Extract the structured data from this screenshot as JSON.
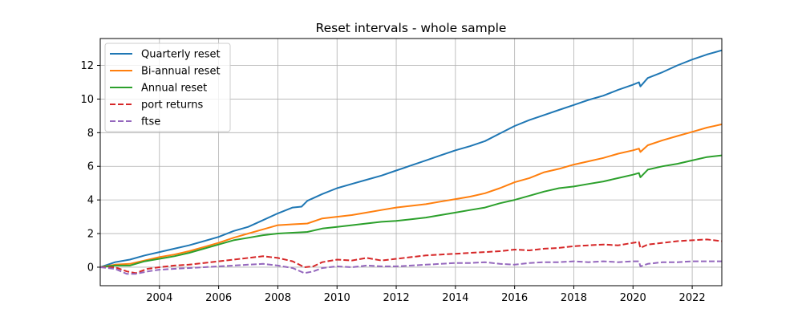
{
  "chart_data": {
    "type": "line",
    "title": "Reset intervals - whole sample",
    "xlabel": "",
    "ylabel": "",
    "xlim": [
      2002.0,
      2023.0
    ],
    "ylim": [
      -1.1,
      13.6
    ],
    "x_ticks": [
      2004,
      2006,
      2008,
      2010,
      2012,
      2014,
      2016,
      2018,
      2020,
      2022
    ],
    "x_tick_labels": [
      "2004",
      "2006",
      "2008",
      "2010",
      "2012",
      "2014",
      "2016",
      "2018",
      "2020",
      "2022"
    ],
    "y_ticks": [
      0,
      2,
      4,
      6,
      8,
      10,
      12
    ],
    "y_tick_labels": [
      "0",
      "2",
      "4",
      "6",
      "8",
      "10",
      "12"
    ],
    "grid": true,
    "legend_position": "upper-left",
    "series": [
      {
        "name": "Quarterly reset",
        "color": "#1f77b4",
        "dash": "solid",
        "x": [
          2002.0,
          2002.5,
          2003.0,
          2003.5,
          2004.0,
          2004.5,
          2005.0,
          2005.5,
          2006.0,
          2006.5,
          2007.0,
          2007.5,
          2008.0,
          2008.5,
          2008.8,
          2009.0,
          2009.5,
          2010.0,
          2010.5,
          2011.0,
          2011.5,
          2012.0,
          2012.5,
          2013.0,
          2013.5,
          2014.0,
          2014.5,
          2015.0,
          2015.5,
          2016.0,
          2016.5,
          2017.0,
          2017.5,
          2018.0,
          2018.5,
          2019.0,
          2019.5,
          2020.0,
          2020.2,
          2020.25,
          2020.5,
          2021.0,
          2021.5,
          2022.0,
          2022.5,
          2023.0
        ],
        "y": [
          0.0,
          0.3,
          0.45,
          0.7,
          0.9,
          1.1,
          1.3,
          1.55,
          1.8,
          2.15,
          2.4,
          2.8,
          3.2,
          3.55,
          3.6,
          3.95,
          4.35,
          4.7,
          4.95,
          5.2,
          5.45,
          5.75,
          6.05,
          6.35,
          6.65,
          6.95,
          7.2,
          7.5,
          7.95,
          8.4,
          8.75,
          9.05,
          9.35,
          9.65,
          9.95,
          10.2,
          10.55,
          10.85,
          11.0,
          10.75,
          11.25,
          11.6,
          12.0,
          12.35,
          12.65,
          12.9
        ]
      },
      {
        "name": "Bi-annual reset",
        "color": "#ff7f0e",
        "dash": "solid",
        "x": [
          2002.0,
          2002.5,
          2003.0,
          2003.5,
          2004.0,
          2004.5,
          2005.0,
          2005.5,
          2006.0,
          2006.5,
          2007.0,
          2007.5,
          2008.0,
          2008.5,
          2009.0,
          2009.5,
          2010.0,
          2010.5,
          2011.0,
          2011.5,
          2012.0,
          2012.5,
          2013.0,
          2013.5,
          2014.0,
          2014.5,
          2015.0,
          2015.5,
          2016.0,
          2016.5,
          2017.0,
          2017.5,
          2018.0,
          2018.5,
          2019.0,
          2019.5,
          2020.0,
          2020.2,
          2020.25,
          2020.5,
          2021.0,
          2021.5,
          2022.0,
          2022.5,
          2023.0
        ],
        "y": [
          0.0,
          0.15,
          0.2,
          0.4,
          0.6,
          0.75,
          0.95,
          1.2,
          1.45,
          1.75,
          2.0,
          2.25,
          2.5,
          2.55,
          2.6,
          2.9,
          3.0,
          3.1,
          3.25,
          3.4,
          3.55,
          3.65,
          3.75,
          3.9,
          4.05,
          4.2,
          4.4,
          4.7,
          5.05,
          5.3,
          5.65,
          5.85,
          6.1,
          6.3,
          6.5,
          6.75,
          6.95,
          7.05,
          6.85,
          7.25,
          7.55,
          7.8,
          8.05,
          8.3,
          8.5
        ]
      },
      {
        "name": "Annual reset",
        "color": "#2ca02c",
        "dash": "solid",
        "x": [
          2002.0,
          2002.5,
          2003.0,
          2003.5,
          2004.0,
          2004.5,
          2005.0,
          2005.5,
          2006.0,
          2006.5,
          2007.0,
          2007.5,
          2008.0,
          2008.5,
          2009.0,
          2009.5,
          2010.0,
          2010.5,
          2011.0,
          2011.5,
          2012.0,
          2012.5,
          2013.0,
          2013.5,
          2014.0,
          2014.5,
          2015.0,
          2015.5,
          2016.0,
          2016.5,
          2017.0,
          2017.5,
          2018.0,
          2018.5,
          2019.0,
          2019.5,
          2020.0,
          2020.2,
          2020.25,
          2020.5,
          2021.0,
          2021.5,
          2022.0,
          2022.5,
          2023.0
        ],
        "y": [
          0.0,
          0.1,
          0.1,
          0.35,
          0.5,
          0.65,
          0.85,
          1.1,
          1.35,
          1.6,
          1.75,
          1.9,
          2.0,
          2.05,
          2.1,
          2.3,
          2.4,
          2.5,
          2.6,
          2.7,
          2.75,
          2.85,
          2.95,
          3.1,
          3.25,
          3.4,
          3.55,
          3.8,
          4.0,
          4.25,
          4.5,
          4.7,
          4.8,
          4.95,
          5.1,
          5.3,
          5.5,
          5.6,
          5.35,
          5.8,
          6.0,
          6.15,
          6.35,
          6.55,
          6.65
        ]
      },
      {
        "name": "port returns",
        "color": "#d62728",
        "dash": "dashed",
        "x": [
          2002.0,
          2002.5,
          2002.9,
          2003.2,
          2003.6,
          2004.0,
          2004.5,
          2005.0,
          2005.5,
          2006.0,
          2006.5,
          2007.0,
          2007.5,
          2008.0,
          2008.5,
          2008.9,
          2009.2,
          2009.5,
          2010.0,
          2010.5,
          2011.0,
          2011.5,
          2012.0,
          2012.5,
          2013.0,
          2013.5,
          2014.0,
          2014.5,
          2015.0,
          2015.5,
          2016.0,
          2016.5,
          2017.0,
          2017.5,
          2018.0,
          2018.5,
          2019.0,
          2019.5,
          2020.0,
          2020.2,
          2020.25,
          2020.5,
          2021.0,
          2021.5,
          2022.0,
          2022.5,
          2023.0
        ],
        "y": [
          0.0,
          0.0,
          -0.25,
          -0.35,
          -0.1,
          0.0,
          0.1,
          0.15,
          0.25,
          0.35,
          0.45,
          0.55,
          0.65,
          0.55,
          0.35,
          0.0,
          0.05,
          0.3,
          0.45,
          0.4,
          0.55,
          0.4,
          0.5,
          0.6,
          0.7,
          0.75,
          0.8,
          0.85,
          0.9,
          0.95,
          1.05,
          1.0,
          1.1,
          1.15,
          1.25,
          1.3,
          1.35,
          1.3,
          1.45,
          1.5,
          1.15,
          1.35,
          1.45,
          1.55,
          1.6,
          1.65,
          1.55
        ]
      },
      {
        "name": "ftse",
        "color": "#9467bd",
        "dash": "dashed",
        "x": [
          2002.0,
          2002.5,
          2002.9,
          2003.2,
          2003.6,
          2004.0,
          2004.5,
          2005.0,
          2005.5,
          2006.0,
          2006.5,
          2007.0,
          2007.5,
          2008.0,
          2008.5,
          2008.9,
          2009.2,
          2009.5,
          2010.0,
          2010.5,
          2011.0,
          2011.5,
          2012.0,
          2012.5,
          2013.0,
          2013.5,
          2014.0,
          2014.5,
          2015.0,
          2015.5,
          2016.0,
          2016.5,
          2017.0,
          2017.5,
          2018.0,
          2018.5,
          2019.0,
          2019.5,
          2020.0,
          2020.2,
          2020.25,
          2020.5,
          2021.0,
          2021.5,
          2022.0,
          2022.5,
          2023.0
        ],
        "y": [
          0.0,
          -0.1,
          -0.4,
          -0.4,
          -0.25,
          -0.15,
          -0.1,
          -0.05,
          0.0,
          0.05,
          0.1,
          0.15,
          0.2,
          0.1,
          -0.05,
          -0.35,
          -0.25,
          -0.05,
          0.05,
          0.0,
          0.1,
          0.05,
          0.05,
          0.1,
          0.15,
          0.2,
          0.25,
          0.25,
          0.3,
          0.2,
          0.15,
          0.25,
          0.3,
          0.3,
          0.35,
          0.3,
          0.35,
          0.3,
          0.35,
          0.35,
          0.05,
          0.2,
          0.3,
          0.3,
          0.35,
          0.35,
          0.35
        ]
      }
    ]
  }
}
